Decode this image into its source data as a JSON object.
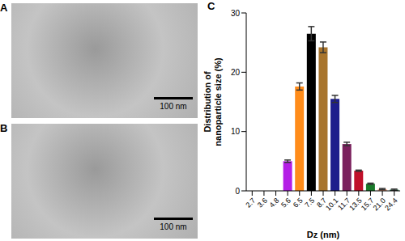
{
  "panels": {
    "A": {
      "label": "A",
      "scale_bar": "100 nm"
    },
    "B": {
      "label": "B",
      "scale_bar": "100 nm"
    },
    "C": {
      "label": "C"
    }
  },
  "chart_data": {
    "type": "bar",
    "x_label": "Dz (nm)",
    "y_label": "Distribution of nanoparticle size (%)",
    "categories": [
      "2.7",
      "3.6",
      "4.8",
      "5.6",
      "6.5",
      "7.5",
      "8.7",
      "10.1",
      "11.7",
      "13.5",
      "15.7",
      "21.0",
      "24.4"
    ],
    "values": [
      0,
      0,
      0,
      5,
      17.6,
      26.5,
      24.2,
      15.5,
      7.9,
      3.4,
      1.2,
      0.3,
      0.2
    ],
    "error": [
      0,
      0,
      0,
      0.2,
      0.6,
      1.2,
      0.9,
      0.6,
      0.3,
      0.1,
      0.1,
      0.1,
      0.1
    ],
    "colors": [
      "#999999",
      "#999999",
      "#999999",
      "#b41ee6",
      "#ff8c1a",
      "#000000",
      "#a8742c",
      "#1e1e8c",
      "#7a1f5c",
      "#c0102a",
      "#1a7a2a",
      "#f4a582",
      "#2e8b57"
    ],
    "ylim": [
      0,
      30
    ],
    "yticks": [
      0,
      10,
      20,
      30
    ],
    "grid": false
  }
}
